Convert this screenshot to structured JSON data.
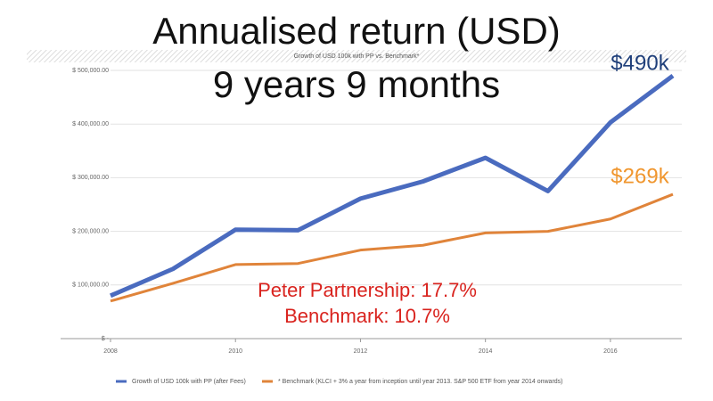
{
  "chart_data": {
    "type": "line",
    "title": "Annualised return (USD)",
    "subtitle": "9 years 9 months",
    "chart_title": "Growth of USD 100k with PP vs. Benchmark*",
    "x": [
      2008,
      2009,
      2010,
      2011,
      2012,
      2013,
      2014,
      2015,
      2016,
      2017
    ],
    "series": [
      {
        "name": "Growth of USD 100k with PP (after Fees)",
        "color": "#4a6bbf",
        "values": [
          80000,
          130000,
          203000,
          202000,
          261000,
          293000,
          337000,
          275000,
          403000,
          490000
        ]
      },
      {
        "name": "* Benchmark (KLCI + 3% a year from inception until year 2013. S&P 500 ETF from year 2014 onwards)",
        "color": "#e0843a",
        "values": [
          70000,
          103000,
          138000,
          140000,
          165000,
          174000,
          197000,
          200000,
          223000,
          269000
        ]
      }
    ],
    "xlim": [
      2008,
      2017
    ],
    "xticks": [
      2008,
      2010,
      2012,
      2014,
      2016
    ],
    "ylim": [
      0,
      500000
    ],
    "yticks": [
      {
        "value": 0,
        "label": "$ -"
      },
      {
        "value": 100000,
        "label": "$ 100,000.00"
      },
      {
        "value": 200000,
        "label": "$ 200,000.00"
      },
      {
        "value": 300000,
        "label": "$ 300,000.00"
      },
      {
        "value": 400000,
        "label": "$ 400,000.00"
      },
      {
        "value": 500000,
        "label": "$ 500,000.00"
      }
    ],
    "grid": true,
    "legend": "bottom",
    "annotations": [
      {
        "text": "$490k",
        "color": "#1f3f7a"
      },
      {
        "text": "$269k",
        "color": "#f0962e"
      },
      {
        "text": "Peter Partnership: 17.7%",
        "color": "#d9231e"
      },
      {
        "text": "Benchmark: 10.7%",
        "color": "#d9231e"
      }
    ]
  }
}
